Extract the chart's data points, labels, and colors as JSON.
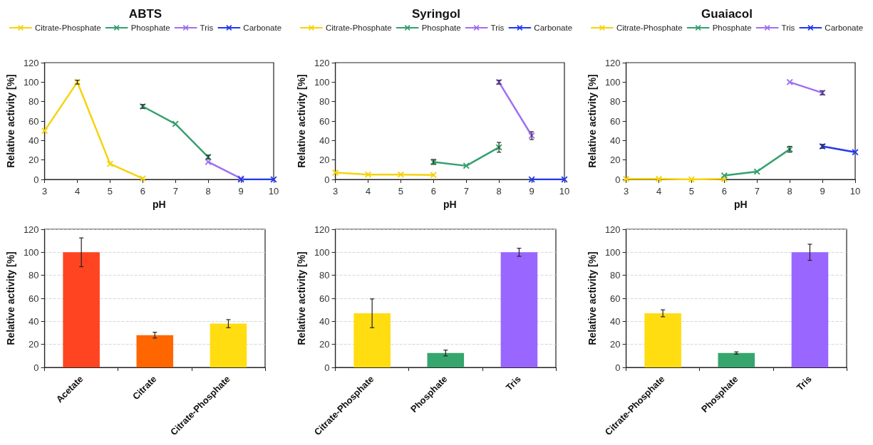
{
  "chart_data": [
    {
      "type": "line",
      "title": "ABTS",
      "xlabel": "pH",
      "ylabel": "Relative activity [%]",
      "xlim": [
        3,
        10
      ],
      "xticks": [
        3,
        4,
        5,
        6,
        7,
        8,
        9,
        10
      ],
      "ylim": [
        0,
        120
      ],
      "yticks": [
        0,
        20,
        40,
        60,
        80,
        100,
        120
      ],
      "grid": false,
      "legend": "top",
      "marker": "cross",
      "series": [
        {
          "name": "Citrate-Phosphate",
          "color": "#f5d30c",
          "x": [
            3,
            4,
            5,
            6
          ],
          "values": [
            50,
            100,
            16,
            1
          ],
          "errors": [
            null,
            2,
            null,
            null
          ]
        },
        {
          "name": "Phosphate",
          "color": "#35a06e",
          "x": [
            6,
            7,
            8
          ],
          "values": [
            75,
            57,
            23
          ],
          "errors": [
            2,
            null,
            2
          ]
        },
        {
          "name": "Tris",
          "color": "#9f6ff2",
          "x": [
            8,
            9
          ],
          "values": [
            18,
            1
          ],
          "errors": [
            null,
            null
          ]
        },
        {
          "name": "Carbonate",
          "color": "#2438ee",
          "x": [
            9,
            10
          ],
          "values": [
            0,
            0
          ],
          "errors": [
            null,
            null
          ]
        }
      ]
    },
    {
      "type": "line",
      "title": "Syringol",
      "xlabel": "pH",
      "ylabel": "Relative activity [%]",
      "xlim": [
        3,
        10
      ],
      "xticks": [
        3,
        4,
        5,
        6,
        7,
        8,
        9,
        10
      ],
      "ylim": [
        0,
        120
      ],
      "yticks": [
        0,
        20,
        40,
        60,
        80,
        100,
        120
      ],
      "grid": false,
      "legend": "top",
      "marker": "cross",
      "series": [
        {
          "name": "Citrate-Phosphate",
          "color": "#f5d30c",
          "x": [
            3,
            4,
            5,
            6
          ],
          "values": [
            7,
            5,
            5,
            4.5
          ],
          "errors": [
            null,
            null,
            null,
            null
          ]
        },
        {
          "name": "Phosphate",
          "color": "#35a06e",
          "x": [
            6,
            7,
            8
          ],
          "values": [
            18,
            14,
            33
          ],
          "errors": [
            2.5,
            null,
            5
          ]
        },
        {
          "name": "Tris",
          "color": "#9f6ff2",
          "x": [
            8,
            9
          ],
          "values": [
            100,
            45
          ],
          "errors": [
            2,
            4
          ]
        },
        {
          "name": "Carbonate",
          "color": "#2438ee",
          "x": [
            9,
            10
          ],
          "values": [
            0,
            0
          ],
          "errors": [
            null,
            null
          ]
        }
      ]
    },
    {
      "type": "line",
      "title": "Guaiacol",
      "xlabel": "pH",
      "ylabel": "Relative activity [%]",
      "xlim": [
        3,
        10
      ],
      "xticks": [
        3,
        4,
        5,
        6,
        7,
        8,
        9,
        10
      ],
      "ylim": [
        0,
        120
      ],
      "yticks": [
        0,
        20,
        40,
        60,
        80,
        100,
        120
      ],
      "grid": false,
      "legend": "top",
      "marker": "cross",
      "series": [
        {
          "name": "Citrate-Phosphate",
          "color": "#f5d30c",
          "x": [
            3,
            4,
            5,
            6
          ],
          "values": [
            0.5,
            0.5,
            0,
            0.5
          ],
          "errors": [
            null,
            null,
            null,
            null
          ]
        },
        {
          "name": "Phosphate",
          "color": "#35a06e",
          "x": [
            6,
            7,
            8
          ],
          "values": [
            4,
            8,
            31
          ],
          "errors": [
            null,
            null,
            3
          ]
        },
        {
          "name": "Tris",
          "color": "#9f6ff2",
          "x": [
            8,
            9
          ],
          "values": [
            100,
            89
          ],
          "errors": [
            null,
            2
          ]
        },
        {
          "name": "Carbonate",
          "color": "#2438ee",
          "x": [
            9,
            10
          ],
          "values": [
            34,
            28
          ],
          "errors": [
            2,
            null
          ]
        }
      ]
    },
    {
      "type": "bar",
      "ylabel": "Relative activity [%]",
      "categories": [
        "Acetate",
        "Citrate",
        "Citrate-Phosphate"
      ],
      "values": [
        100,
        28,
        38
      ],
      "errors": [
        12.5,
        2.5,
        3.5
      ],
      "colors": [
        "#ff4422",
        "#ff6600",
        "#ffdd11"
      ],
      "ylim": [
        0,
        120
      ],
      "yticks": [
        0,
        20,
        40,
        60,
        80,
        100,
        120
      ],
      "grid": "y"
    },
    {
      "type": "bar",
      "ylabel": "Relative activity [%]",
      "categories": [
        "Citrate-Phosphate",
        "Phosphate",
        "Tris"
      ],
      "values": [
        47,
        12.5,
        100
      ],
      "errors": [
        12.5,
        2.5,
        3.5
      ],
      "colors": [
        "#ffdd11",
        "#37a56e",
        "#9966ff"
      ],
      "ylim": [
        0,
        120
      ],
      "yticks": [
        0,
        20,
        40,
        60,
        80,
        100,
        120
      ],
      "grid": "y"
    },
    {
      "type": "bar",
      "ylabel": "Relative activity [%]",
      "categories": [
        "Citrate-Phosphate",
        "Phosphate",
        "Tris"
      ],
      "values": [
        47,
        12.5,
        100
      ],
      "errors": [
        3,
        1,
        7
      ],
      "colors": [
        "#ffdd11",
        "#37a56e",
        "#9966ff"
      ],
      "ylim": [
        0,
        120
      ],
      "yticks": [
        0,
        20,
        40,
        60,
        80,
        100,
        120
      ],
      "grid": "y"
    }
  ]
}
